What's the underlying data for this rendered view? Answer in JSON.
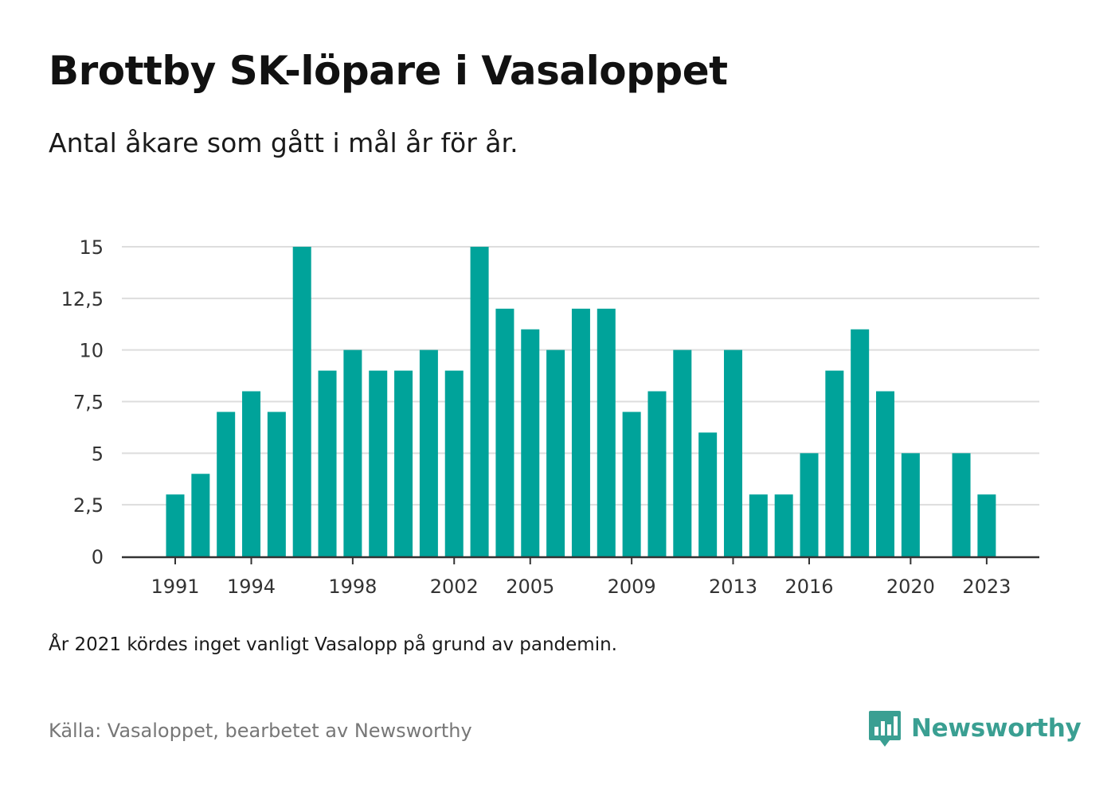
{
  "header": {
    "title": "Brottby SK-löpare i Vasaloppet",
    "subtitle": "Antal åkare som gått i mål år för år."
  },
  "footer": {
    "note": "År 2021 kördes inget vanligt Vasalopp på grund av pandemin.",
    "source": "Källa: Vasaloppet, bearbetet av Newsworthy",
    "brand": "Newsworthy",
    "brand_icon": "bar-chart-speech-bubble-icon"
  },
  "colors": {
    "bar": "#00a39a",
    "grid": "#dddddd",
    "axis": "#333333",
    "brand": "#3a9f92"
  },
  "chart_data": {
    "type": "bar",
    "title": "Brottby SK-löpare i Vasaloppet",
    "subtitle": "Antal åkare som gått i mål år för år.",
    "xlabel": "",
    "ylabel": "",
    "categories": [
      1991,
      1992,
      1993,
      1994,
      1995,
      1996,
      1997,
      1998,
      1999,
      2000,
      2001,
      2002,
      2003,
      2004,
      2005,
      2006,
      2007,
      2008,
      2009,
      2010,
      2011,
      2012,
      2013,
      2014,
      2015,
      2016,
      2017,
      2018,
      2019,
      2020,
      2021,
      2022,
      2023
    ],
    "values": [
      3,
      4,
      7,
      8,
      7,
      15,
      9,
      10,
      9,
      9,
      10,
      9,
      15,
      12,
      11,
      10,
      12,
      12,
      7,
      8,
      10,
      6,
      10,
      3,
      3,
      5,
      9,
      11,
      8,
      5,
      null,
      5,
      3
    ],
    "ylim": [
      0,
      15
    ],
    "y_ticks": [
      0,
      2.5,
      5,
      7.5,
      10,
      12.5,
      15
    ],
    "y_tick_labels": [
      "0",
      "2,5",
      "5",
      "7,5",
      "10",
      "12,5",
      "15"
    ],
    "x_tick_labels": [
      "1991",
      "1994",
      "1998",
      "2002",
      "2005",
      "2009",
      "2013",
      "2016",
      "2020",
      "2023"
    ],
    "grid": true,
    "legend": "none"
  }
}
